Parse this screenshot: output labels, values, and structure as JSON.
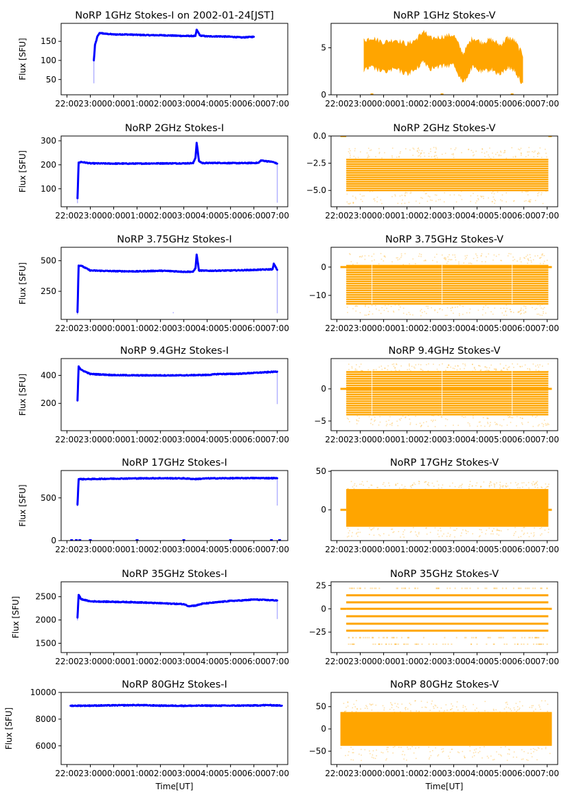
{
  "chart_data": [
    {
      "id": "1ghz-i",
      "type": "scatter",
      "title": "NoRP 1GHz Stokes-I on 2002-01-24[JST]",
      "ylabel": "Flux [SFU]",
      "xlabel": "",
      "color": "#0000ff",
      "ylim": [
        10,
        197
      ],
      "yticks": [
        50,
        100,
        150
      ],
      "x": [
        23.15,
        23.2,
        23.3,
        23.4,
        23.6,
        24.0,
        24.5,
        25.0,
        25.5,
        26.0,
        26.5,
        27.0,
        27.5,
        27.55,
        27.7,
        28.0,
        28.5,
        29.0,
        29.5,
        30.0
      ],
      "values": [
        100,
        140,
        162,
        172,
        170,
        168,
        168,
        167,
        166,
        166,
        165,
        164,
        164,
        180,
        165,
        163,
        163,
        162,
        160,
        162
      ],
      "dropouts": [
        {
          "x": 23.15,
          "low": 40
        }
      ]
    },
    {
      "id": "1ghz-v",
      "type": "scatter",
      "title": "NoRP 1GHz Stokes-V",
      "ylabel": "",
      "xlabel": "",
      "color": "#ffa500",
      "ylim": [
        0,
        7.6
      ],
      "yticks": [
        0,
        5
      ],
      "x": [
        22.2,
        23.1,
        23.15,
        23.5,
        24.0,
        24.5,
        25.0,
        25.4,
        25.7,
        26.0,
        26.5,
        27.0,
        27.4,
        27.8,
        28.2,
        28.6,
        29.0,
        29.3,
        29.6,
        30.0,
        30.05,
        31.2
      ],
      "values": [
        0,
        0,
        4.2,
        4.5,
        4.0,
        4.3,
        3.8,
        4.3,
        5.2,
        4.4,
        4.6,
        4.8,
        2.8,
        4.5,
        4.0,
        4.3,
        3.7,
        4.5,
        4.2,
        2.5,
        0,
        0
      ],
      "band": 3.2
    },
    {
      "id": "2ghz-i",
      "type": "scatter",
      "title": "NoRP 2GHz Stokes-I",
      "ylabel": "Flux [SFU]",
      "xlabel": "",
      "color": "#0000ff",
      "ylim": [
        25,
        320
      ],
      "yticks": [
        100,
        200,
        300
      ],
      "x": [
        22.45,
        22.5,
        22.6,
        23.0,
        24.0,
        25.0,
        26.0,
        27.0,
        27.4,
        27.5,
        27.55,
        27.65,
        27.8,
        28.5,
        29.0,
        29.5,
        30.2,
        30.3,
        30.8,
        31.0
      ],
      "values": [
        60,
        208,
        212,
        206,
        205,
        205,
        206,
        206,
        207,
        230,
        292,
        215,
        207,
        208,
        207,
        207,
        208,
        218,
        212,
        205
      ],
      "dropouts": [
        {
          "x": 22.45,
          "low": 40
        },
        {
          "x": 31.0,
          "low": 42
        }
      ]
    },
    {
      "id": "2ghz-v",
      "type": "scatter",
      "title": "NoRP 2GHz Stokes-V",
      "ylabel": "",
      "xlabel": "",
      "color": "#ffa500",
      "ylim": [
        -6.5,
        0
      ],
      "yticks": [
        0.0,
        -2.5,
        -5.0
      ],
      "ytick_labels": [
        "0.0",
        "−2.5",
        "−5.0"
      ],
      "x_range": [
        22.4,
        31.05
      ],
      "band_levels": [
        -2.0,
        -5.0
      ],
      "outlier_levels": [
        -1.0,
        -6.2
      ],
      "zero_segments": [
        [
          22.15,
          22.4
        ],
        [
          31.05,
          31.2
        ]
      ],
      "values_mean": -3.7
    },
    {
      "id": "375ghz-i",
      "type": "scatter",
      "title": "NoRP 3.75GHz Stokes-I",
      "ylabel": "Flux [SFU]",
      "xlabel": "",
      "color": "#0000ff",
      "ylim": [
        20,
        610
      ],
      "yticks": [
        250,
        500
      ],
      "x": [
        22.45,
        22.5,
        22.6,
        23.0,
        24.0,
        25.0,
        26.0,
        26.5,
        27.0,
        27.4,
        27.5,
        27.55,
        27.65,
        28.0,
        29.0,
        30.0,
        30.8,
        30.85,
        31.0
      ],
      "values": [
        80,
        460,
        460,
        420,
        415,
        413,
        418,
        415,
        410,
        410,
        440,
        550,
        420,
        418,
        420,
        425,
        430,
        475,
        425
      ],
      "dropouts": [
        {
          "x": 22.45,
          "low": 60
        },
        {
          "x": 26.55,
          "low": 70
        },
        {
          "x": 31.0,
          "low": 70
        }
      ]
    },
    {
      "id": "375ghz-v",
      "type": "scatter",
      "title": "NoRP 3.75GHz Stokes-V",
      "ylabel": "",
      "xlabel": "",
      "color": "#ffa500",
      "ylim": [
        -18.5,
        7
      ],
      "yticks": [
        0,
        -10
      ],
      "ytick_labels": [
        "0",
        "−10"
      ],
      "x_range": [
        22.4,
        31.05
      ],
      "band_levels": [
        1,
        -13
      ],
      "outlier_levels": [
        5,
        -17
      ],
      "zero_segments": [
        [
          22.15,
          22.4
        ],
        [
          31.05,
          31.2
        ]
      ],
      "gaps": [
        23.5,
        26.5,
        29.5
      ]
    },
    {
      "id": "94ghz-i",
      "type": "scatter",
      "title": "NoRP 9.4GHz Stokes-I",
      "ylabel": "Flux [SFU]",
      "xlabel": "",
      "color": "#0000ff",
      "ylim": [
        5,
        520
      ],
      "yticks": [
        200,
        400
      ],
      "x": [
        22.45,
        22.5,
        22.6,
        23.0,
        24.0,
        25.0,
        26.0,
        27.0,
        27.5,
        28.0,
        28.5,
        29.0,
        29.5,
        30.0,
        30.5,
        31.0
      ],
      "values": [
        220,
        465,
        440,
        410,
        402,
        400,
        400,
        400,
        402,
        403,
        410,
        410,
        413,
        418,
        422,
        427
      ],
      "dropouts": [
        {
          "x": 31.0,
          "low": 195
        }
      ]
    },
    {
      "id": "94ghz-v",
      "type": "scatter",
      "title": "NoRP 9.4GHz Stokes-V",
      "ylabel": "",
      "xlabel": "",
      "color": "#ffa500",
      "ylim": [
        -6.5,
        4.7
      ],
      "yticks": [
        0,
        -5
      ],
      "ytick_labels": [
        "0",
        "−5"
      ],
      "x_range": [
        22.4,
        31.05
      ],
      "band_levels": [
        2.8,
        -4.0
      ],
      "outlier_levels": [
        4.0,
        -5.8
      ],
      "zero_segments": [
        [
          22.15,
          22.4
        ],
        [
          31.05,
          31.2
        ]
      ],
      "gaps": [
        23.5,
        26.5,
        29.5
      ]
    },
    {
      "id": "17ghz-i",
      "type": "scatter",
      "title": "NoRP 17GHz Stokes-I",
      "ylabel": "Flux [SFU]",
      "xlabel": "",
      "color": "#0000ff",
      "ylim": [
        0,
        820
      ],
      "yticks": [
        0,
        500
      ],
      "x": [
        22.45,
        22.5,
        22.6,
        23.0,
        24.0,
        25.0,
        26.0,
        27.0,
        27.5,
        28.0,
        29.0,
        30.0,
        31.0
      ],
      "values": [
        420,
        720,
        720,
        720,
        725,
        728,
        730,
        728,
        720,
        728,
        730,
        732,
        730
      ],
      "dropouts": [
        {
          "x": 22.45,
          "low": 400
        },
        {
          "x": 31.0,
          "low": 410
        }
      ],
      "zero_marks": [
        22.2,
        22.4,
        22.55,
        23.0,
        25.0,
        27.0,
        29.0,
        30.75,
        31.1
      ]
    },
    {
      "id": "17ghz-v",
      "type": "scatter",
      "title": "NoRP 17GHz Stokes-V",
      "ylabel": "",
      "xlabel": "",
      "color": "#ffa500",
      "ylim": [
        -40,
        51
      ],
      "yticks": [
        0,
        50
      ],
      "x_range": [
        22.4,
        31.05
      ],
      "band_levels": [
        27,
        -22
      ],
      "outlier_levels": [
        38,
        -35
      ],
      "zero_segments": [
        [
          22.15,
          22.4
        ],
        [
          31.05,
          31.2
        ]
      ]
    },
    {
      "id": "35ghz-i",
      "type": "scatter",
      "title": "NoRP 35GHz Stokes-I",
      "ylabel": "Flux [SFU]",
      "xlabel": "",
      "color": "#0000ff",
      "ylim": [
        1300,
        2820
      ],
      "yticks": [
        1500,
        2000,
        2500
      ],
      "x": [
        22.45,
        22.5,
        22.6,
        23.0,
        24.0,
        25.0,
        26.0,
        27.0,
        27.2,
        27.5,
        27.8,
        28.0,
        29.0,
        29.5,
        30.0,
        30.5,
        31.0
      ],
      "values": [
        2050,
        2540,
        2450,
        2400,
        2390,
        2380,
        2360,
        2340,
        2300,
        2310,
        2350,
        2360,
        2410,
        2420,
        2440,
        2430,
        2420
      ],
      "dropouts": [
        {
          "x": 22.45,
          "low": 1990
        },
        {
          "x": 31.0,
          "low": 2020
        }
      ]
    },
    {
      "id": "35ghz-v",
      "type": "scatter",
      "title": "NoRP 35GHz Stokes-V",
      "ylabel": "",
      "xlabel": "",
      "color": "#ffa500",
      "ylim": [
        -47,
        29
      ],
      "yticks": [
        25,
        0,
        -25
      ],
      "ytick_labels": [
        "25",
        "0",
        "−25"
      ],
      "x_range": [
        22.4,
        31.05
      ],
      "levels": [
        22,
        14.5,
        7,
        0,
        -8,
        -16,
        -23.5,
        -31,
        -38
      ],
      "sparse_levels": [
        22,
        -31,
        -38
      ],
      "zero_segments": [
        [
          22.15,
          22.4
        ],
        [
          31.05,
          31.2
        ]
      ]
    },
    {
      "id": "80ghz-i",
      "type": "scatter",
      "title": "NoRP 80GHz Stokes-I",
      "ylabel": "Flux [SFU]",
      "xlabel": "Time[UT]",
      "color": "#0000ff",
      "ylim": [
        4600,
        10000
      ],
      "yticks": [
        6000,
        8000,
        10000
      ],
      "x": [
        22.15,
        23.0,
        24.0,
        25.0,
        26.0,
        27.0,
        28.0,
        29.0,
        30.0,
        30.6,
        31.2
      ],
      "values": [
        9000,
        9010,
        9030,
        9050,
        9010,
        9000,
        9010,
        9010,
        9020,
        9050,
        9010
      ]
    },
    {
      "id": "80ghz-v",
      "type": "scatter",
      "title": "NoRP 80GHz Stokes-V",
      "ylabel": "",
      "xlabel": "Time[UT]",
      "color": "#ffa500",
      "ylim": [
        -80,
        82
      ],
      "yticks": [
        50,
        0,
        -50
      ],
      "ytick_labels": [
        "50",
        "0",
        "−50"
      ],
      "x_range": [
        22.15,
        31.2
      ],
      "band_levels": [
        38,
        -38
      ],
      "outlier_levels": [
        65,
        -70
      ]
    }
  ],
  "x_axis": {
    "xlim": [
      21.75,
      31.45
    ],
    "ticks": [
      22,
      23,
      24,
      25,
      26,
      27,
      28,
      29,
      30,
      31
    ],
    "tick_labels": [
      "22:00",
      "23:00",
      "00:00",
      "01:00",
      "02:00",
      "03:00",
      "04:00",
      "05:00",
      "06:00",
      "07:00"
    ]
  }
}
